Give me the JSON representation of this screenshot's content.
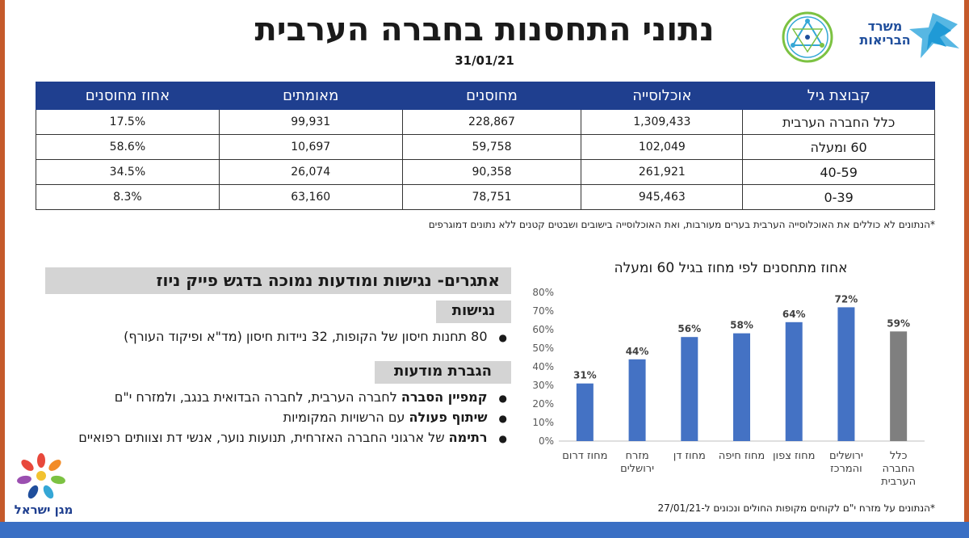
{
  "header": {
    "title": "נתוני התחסנות בחברה הערבית",
    "date": "31/01/21"
  },
  "logos": {
    "ministry_name": "משרד הבריאות",
    "magen_name": "מגן ישראל"
  },
  "table": {
    "headers": [
      "קבוצת גיל",
      "אוכלוסייה",
      "מחוסנים",
      "מאומתים",
      "אחוז מחוסנים"
    ],
    "rows": [
      {
        "age": "כלל החברה הערבית",
        "population": "1,309,433",
        "vaccinated": "228,867",
        "confirmed": "99,931",
        "percent": "17.5%"
      },
      {
        "age": "60 ומעלה",
        "population": "102,049",
        "vaccinated": "59,758",
        "confirmed": "10,697",
        "percent": "58.6%"
      },
      {
        "age": "40-59",
        "population": "261,921",
        "vaccinated": "90,358",
        "confirmed": "26,074",
        "percent": "34.5%"
      },
      {
        "age": "0-39",
        "population": "945,463",
        "vaccinated": "78,751",
        "confirmed": "63,160",
        "percent": "8.3%"
      }
    ],
    "footnote": "*הנתונים לא כוללים את האוכלוסייה הערבית בערים מעורבות, ואת האוכלוסייה בישובים ושבטים קטנים ללא נתונים דמוגרפים"
  },
  "challenges": {
    "title": "אתגרים- נגישות ומודעות נמוכה בדגש פייק ניוז",
    "access_label": "נגישות",
    "access_item": "80 תחנות חיסון של הקופות, 32 ניידות חיסון  (מד\"א ופיקוד העורף)",
    "awareness_label": "הגברת מודעות",
    "items": [
      {
        "bold": "קמפיין הסברה",
        "text": " לחברה הערבית, לחברה הבדואית בנגב, ולמזרח י\"ם"
      },
      {
        "bold": "שיתוף פעולה",
        "text": " עם הרשויות המקומיות"
      },
      {
        "bold": "רתימה",
        "text": " של ארגוני החברה האזרחית, תנועות נוער, אנשי דת וצוותים רפואיים"
      }
    ]
  },
  "chart_data": {
    "type": "bar",
    "title": "אחוז מתחסנים לפי מחוז בגיל 60 ומעלה",
    "categories": [
      "מחוז דרום",
      "מזרח ירושלים",
      "מחוז דן",
      "מחוז חיפה",
      "מחוז צפון",
      "ירושלים והמרכז",
      "כלל החברה הערבית"
    ],
    "category_lines": [
      [
        "מחוז דרום"
      ],
      [
        "מזרח",
        "ירושלים"
      ],
      [
        "מחוז דן"
      ],
      [
        "מחוז חיפה"
      ],
      [
        "מחוז צפון"
      ],
      [
        "ירושלים",
        "והמרכז"
      ],
      [
        "כלל",
        "החברה",
        "הערבית"
      ]
    ],
    "values": [
      31,
      44,
      56,
      58,
      64,
      72,
      59
    ],
    "labels": [
      "31%",
      "44%",
      "56%",
      "58%",
      "64%",
      "72%",
      "59%"
    ],
    "highlight_last": true,
    "ylim": [
      0,
      80
    ],
    "yticks": [
      "0%",
      "10%",
      "20%",
      "30%",
      "40%",
      "50%",
      "60%",
      "70%",
      "80%"
    ],
    "colors": {
      "bar": "#4472c4",
      "total": "#7f7f7f"
    },
    "note": "*הנתונים על מזרח י\"ם לקוחים מקופות החולים ונכונים ל-27/01/21"
  }
}
